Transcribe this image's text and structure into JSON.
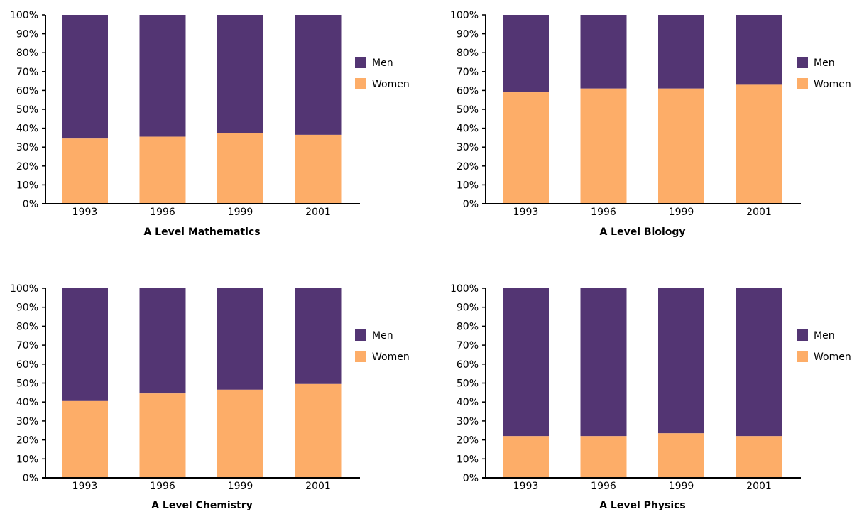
{
  "colors": {
    "men": "#533573",
    "women": "#fdad68",
    "axis": "#000000"
  },
  "chart_data": [
    {
      "type": "bar",
      "stacked": "percent",
      "title": "A Level Mathematics",
      "categories": [
        "1993",
        "1996",
        "1999",
        "2001"
      ],
      "series": [
        {
          "name": "Men",
          "values": [
            65.5,
            64.5,
            62.5,
            63.5
          ]
        },
        {
          "name": "Women",
          "values": [
            34.5,
            35.5,
            37.5,
            36.5
          ]
        }
      ],
      "y_ticks": [
        "0%",
        "10%",
        "20%",
        "30%",
        "40%",
        "50%",
        "60%",
        "70%",
        "80%",
        "90%",
        "100%"
      ],
      "ylim": [
        0,
        100
      ],
      "legend": "right",
      "grid": false
    },
    {
      "type": "bar",
      "stacked": "percent",
      "title": "A Level Biology",
      "categories": [
        "1993",
        "1996",
        "1999",
        "2001"
      ],
      "series": [
        {
          "name": "Men",
          "values": [
            41,
            39,
            39,
            37
          ]
        },
        {
          "name": "Women",
          "values": [
            59,
            61,
            61,
            63
          ]
        }
      ],
      "y_ticks": [
        "0%",
        "10%",
        "20%",
        "30%",
        "40%",
        "50%",
        "60%",
        "70%",
        "80%",
        "90%",
        "100%"
      ],
      "ylim": [
        0,
        100
      ],
      "legend": "right",
      "grid": false
    },
    {
      "type": "bar",
      "stacked": "percent",
      "title": "A Level Chemistry",
      "categories": [
        "1993",
        "1996",
        "1999",
        "2001"
      ],
      "series": [
        {
          "name": "Men",
          "values": [
            59.5,
            55.5,
            53.5,
            50.5
          ]
        },
        {
          "name": "Women",
          "values": [
            40.5,
            44.5,
            46.5,
            49.5
          ]
        }
      ],
      "y_ticks": [
        "0%",
        "10%",
        "20%",
        "30%",
        "40%",
        "50%",
        "60%",
        "70%",
        "80%",
        "90%",
        "100%"
      ],
      "ylim": [
        0,
        100
      ],
      "legend": "right",
      "grid": false
    },
    {
      "type": "bar",
      "stacked": "percent",
      "title": "A Level Physics",
      "categories": [
        "1993",
        "1996",
        "1999",
        "2001"
      ],
      "series": [
        {
          "name": "Men",
          "values": [
            78,
            78,
            76.5,
            78
          ]
        },
        {
          "name": "Women",
          "values": [
            22,
            22,
            23.5,
            22
          ]
        }
      ],
      "y_ticks": [
        "0%",
        "10%",
        "20%",
        "30%",
        "40%",
        "50%",
        "60%",
        "70%",
        "80%",
        "90%",
        "100%"
      ],
      "ylim": [
        0,
        100
      ],
      "legend": "right",
      "grid": false
    }
  ]
}
